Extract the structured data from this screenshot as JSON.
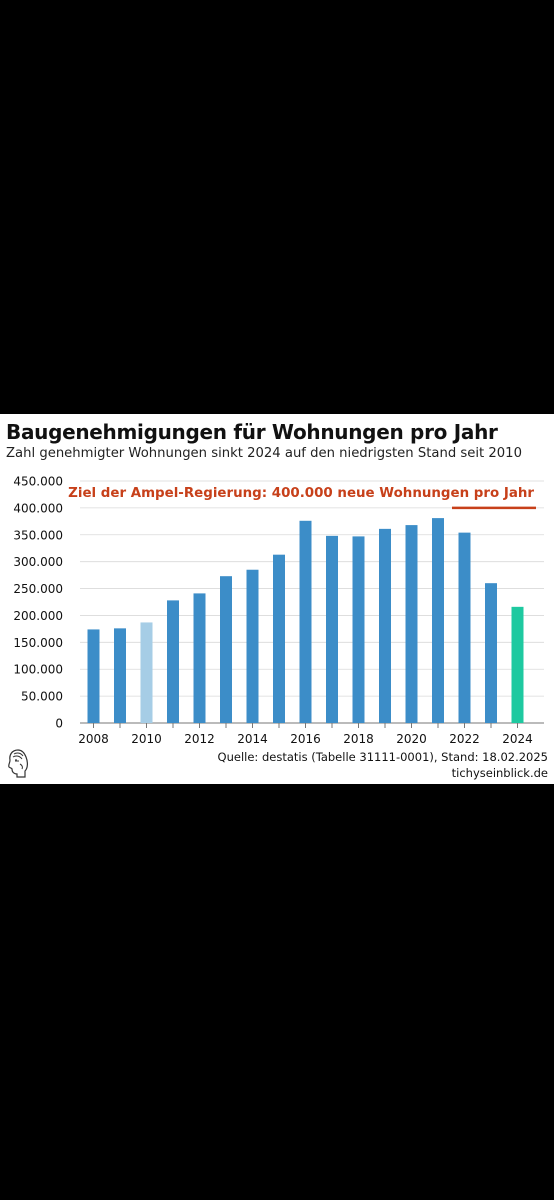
{
  "header": {
    "title": "Baugenehmigungen für Wohnungen pro Jahr",
    "subtitle": "Zahl genehmigter Wohnungen sinkt 2024 auf den niedrigsten Stand seit 2010"
  },
  "footer": {
    "source": "Quelle: destatis (Tabelle 31111-0001), Stand: 18.02.2025",
    "site": "tichyseinblick.de",
    "logo_icon": "profile-head-logo-icon"
  },
  "chart_data": {
    "type": "bar",
    "title": "Baugenehmigungen für Wohnungen pro Jahr",
    "subtitle": "Zahl genehmigter Wohnungen sinkt 2024 auf den niedrigsten Stand seit 2010",
    "categories": [
      "2008",
      "2009",
      "2010",
      "2011",
      "2012",
      "2013",
      "2014",
      "2015",
      "2016",
      "2017",
      "2018",
      "2019",
      "2020",
      "2021",
      "2022",
      "2023",
      "2024"
    ],
    "values": [
      174000,
      176000,
      187000,
      228000,
      241000,
      273000,
      285000,
      313000,
      376000,
      348000,
      347000,
      361000,
      368000,
      381000,
      354000,
      260000,
      216000
    ],
    "bar_colors": [
      "#3c8dc8",
      "#3c8dc8",
      "#a6cde6",
      "#3c8dc8",
      "#3c8dc8",
      "#3c8dc8",
      "#3c8dc8",
      "#3c8dc8",
      "#3c8dc8",
      "#3c8dc8",
      "#3c8dc8",
      "#3c8dc8",
      "#3c8dc8",
      "#3c8dc8",
      "#3c8dc8",
      "#3c8dc8",
      "#1ec9a0"
    ],
    "x_tick_labels": [
      "2008",
      "2010",
      "2012",
      "2014",
      "2016",
      "2018",
      "2020",
      "2022",
      "2024"
    ],
    "y_ticks": [
      0,
      50000,
      100000,
      150000,
      200000,
      250000,
      300000,
      350000,
      400000,
      450000
    ],
    "y_tick_labels": [
      "0",
      "50.000",
      "100.000",
      "150.000",
      "200.000",
      "250.000",
      "300.000",
      "350.000",
      "400.000",
      "450.000"
    ],
    "ylim": [
      0,
      450000
    ],
    "grid": "horizontal",
    "annotation": {
      "text": "Ziel der Ampel-Regierung: 400.000 neue Wohnungen pro Jahr",
      "value": 400000,
      "color": "#c7401a"
    },
    "xlabel": "",
    "ylabel": ""
  }
}
